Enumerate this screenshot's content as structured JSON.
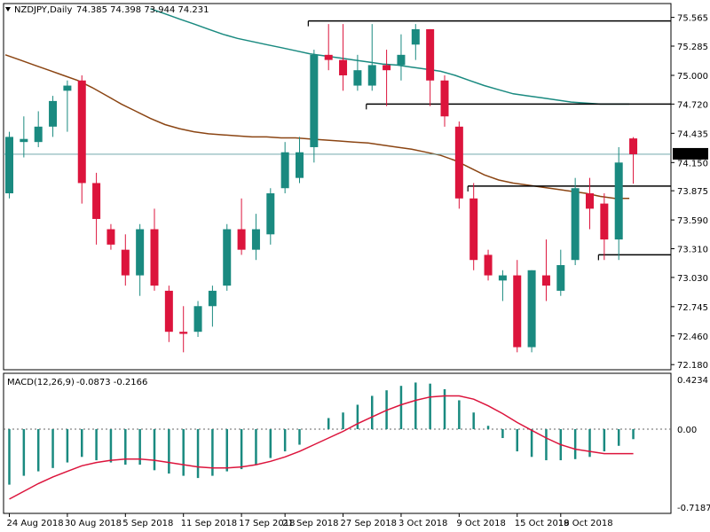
{
  "header": {
    "symbol": "NZDJPY,Daily",
    "ohlc": "74.385 74.398 73.944 74.231"
  },
  "macd": {
    "label": "MACD(12,26,9)",
    "values": "-0.0873 -0.2166"
  },
  "price_axis": {
    "ticks": [
      "75.565",
      "75.285",
      "75.000",
      "74.720",
      "74.435",
      "74.150",
      "73.875",
      "73.590",
      "73.310",
      "73.030",
      "72.745",
      "72.460",
      "72.180"
    ],
    "current_price": "74.231"
  },
  "macd_axis": {
    "ticks": [
      "0.4234",
      "0.00",
      "-0.7187"
    ]
  },
  "date_axis": {
    "labels": [
      "24 Aug 2018",
      "30 Aug 2018",
      "5 Sep 2018",
      "11 Sep 2018",
      "17 Sep 2018",
      "21 Sep 2018",
      "27 Sep 2018",
      "3 Oct 2018",
      "9 Oct 2018",
      "15 Oct 2018",
      "19 Oct 2018"
    ]
  },
  "colors": {
    "bull": "#1a8a80",
    "bear": "#dc143c",
    "ma_fast": "#8b4513",
    "ma_slow": "#1a8a80",
    "signal": "#dc143c",
    "levels": "#000000"
  },
  "chart_data": {
    "type": "candlestick",
    "price_range": [
      72.13,
      75.7
    ],
    "candles": [
      {
        "o": 73.85,
        "h": 74.45,
        "l": 73.8,
        "c": 74.4
      },
      {
        "o": 74.35,
        "h": 74.6,
        "l": 74.2,
        "c": 74.38
      },
      {
        "o": 74.35,
        "h": 74.65,
        "l": 74.3,
        "c": 74.5
      },
      {
        "o": 74.5,
        "h": 74.8,
        "l": 74.4,
        "c": 74.75
      },
      {
        "o": 74.85,
        "h": 74.95,
        "l": 74.45,
        "c": 74.9
      },
      {
        "o": 74.95,
        "h": 75.0,
        "l": 73.75,
        "c": 73.95
      },
      {
        "o": 73.95,
        "h": 74.05,
        "l": 73.35,
        "c": 73.6
      },
      {
        "o": 73.5,
        "h": 73.55,
        "l": 73.3,
        "c": 73.35
      },
      {
        "o": 73.3,
        "h": 73.45,
        "l": 72.95,
        "c": 73.05
      },
      {
        "o": 73.05,
        "h": 73.55,
        "l": 72.85,
        "c": 73.5
      },
      {
        "o": 73.5,
        "h": 73.7,
        "l": 72.9,
        "c": 72.95
      },
      {
        "o": 72.9,
        "h": 72.95,
        "l": 72.4,
        "c": 72.5
      },
      {
        "o": 72.5,
        "h": 72.75,
        "l": 72.3,
        "c": 72.48
      },
      {
        "o": 72.5,
        "h": 72.8,
        "l": 72.45,
        "c": 72.75
      },
      {
        "o": 72.75,
        "h": 72.95,
        "l": 72.55,
        "c": 72.9
      },
      {
        "o": 72.95,
        "h": 73.55,
        "l": 72.9,
        "c": 73.5
      },
      {
        "o": 73.5,
        "h": 73.8,
        "l": 73.25,
        "c": 73.3
      },
      {
        "o": 73.3,
        "h": 73.65,
        "l": 73.2,
        "c": 73.5
      },
      {
        "o": 73.45,
        "h": 73.9,
        "l": 73.35,
        "c": 73.85
      },
      {
        "o": 73.9,
        "h": 74.35,
        "l": 73.85,
        "c": 74.25
      },
      {
        "o": 74.0,
        "h": 74.4,
        "l": 73.95,
        "c": 74.25
      },
      {
        "o": 74.3,
        "h": 75.25,
        "l": 74.15,
        "c": 75.2
      },
      {
        "o": 75.2,
        "h": 75.5,
        "l": 75.05,
        "c": 75.15
      },
      {
        "o": 75.15,
        "h": 75.5,
        "l": 74.85,
        "c": 75.0
      },
      {
        "o": 74.9,
        "h": 75.2,
        "l": 74.85,
        "c": 75.05
      },
      {
        "o": 74.9,
        "h": 75.5,
        "l": 74.85,
        "c": 75.1
      },
      {
        "o": 75.1,
        "h": 75.25,
        "l": 74.7,
        "c": 75.05
      },
      {
        "o": 75.1,
        "h": 75.4,
        "l": 74.95,
        "c": 75.2
      },
      {
        "o": 75.3,
        "h": 75.5,
        "l": 75.15,
        "c": 75.45
      },
      {
        "o": 75.45,
        "h": 75.45,
        "l": 74.7,
        "c": 74.95
      },
      {
        "o": 74.95,
        "h": 75.0,
        "l": 74.5,
        "c": 74.6
      },
      {
        "o": 74.5,
        "h": 74.55,
        "l": 73.7,
        "c": 73.8
      },
      {
        "o": 73.8,
        "h": 73.95,
        "l": 73.1,
        "c": 73.2
      },
      {
        "o": 73.25,
        "h": 73.3,
        "l": 73.0,
        "c": 73.05
      },
      {
        "o": 73.0,
        "h": 73.1,
        "l": 72.8,
        "c": 73.05
      },
      {
        "o": 73.05,
        "h": 73.2,
        "l": 72.3,
        "c": 72.35
      },
      {
        "o": 72.35,
        "h": 73.1,
        "l": 72.3,
        "c": 73.1
      },
      {
        "o": 73.05,
        "h": 73.4,
        "l": 72.8,
        "c": 72.95
      },
      {
        "o": 72.9,
        "h": 73.3,
        "l": 72.85,
        "c": 73.15
      },
      {
        "o": 73.2,
        "h": 74.0,
        "l": 73.15,
        "c": 73.9
      },
      {
        "o": 73.85,
        "h": 74.0,
        "l": 73.5,
        "c": 73.7
      },
      {
        "o": 73.75,
        "h": 73.85,
        "l": 73.2,
        "c": 73.4
      },
      {
        "o": 73.4,
        "h": 74.3,
        "l": 73.2,
        "c": 74.15
      },
      {
        "o": 74.385,
        "h": 74.398,
        "l": 73.944,
        "c": 74.231
      }
    ],
    "ma_fast": [
      75.2,
      75.15,
      75.1,
      75.05,
      75.0,
      74.95,
      74.88,
      74.8,
      74.72,
      74.65,
      74.58,
      74.52,
      74.48,
      74.45,
      74.43,
      74.42,
      74.41,
      74.4,
      74.4,
      74.39,
      74.39,
      74.38,
      74.37,
      74.36,
      74.35,
      74.34,
      74.32,
      74.3,
      74.28,
      74.25,
      74.22,
      74.17,
      74.1,
      74.03,
      73.98,
      73.95,
      73.93,
      73.91,
      73.89,
      73.87,
      73.85,
      73.82,
      73.8,
      73.8
    ],
    "ma_slow_start_index": 10,
    "ma_slow": [
      75.65,
      75.6,
      75.55,
      75.5,
      75.45,
      75.4,
      75.36,
      75.33,
      75.3,
      75.27,
      75.24,
      75.21,
      75.19,
      75.17,
      75.15,
      75.13,
      75.11,
      75.1,
      75.08,
      75.06,
      75.04,
      75.0,
      74.95,
      74.9,
      74.86,
      74.82,
      74.8,
      74.78,
      74.76,
      74.74,
      74.73,
      74.72,
      74.72,
      74.72
    ],
    "levels": [
      {
        "price": 75.53,
        "from_index": 21,
        "to_index": 43
      },
      {
        "price": 74.72,
        "from_index": 25,
        "to_index": 43
      },
      {
        "price": 73.92,
        "from_index": 32,
        "to_index": 43
      },
      {
        "price": 73.25,
        "from_index": 41,
        "to_index": 43
      }
    ],
    "current_price": 74.231,
    "macd_range": [
      -0.7187,
      0.4234
    ],
    "macd_hist": [
      -0.5,
      -0.42,
      -0.38,
      -0.35,
      -0.3,
      -0.25,
      -0.28,
      -0.3,
      -0.32,
      -0.32,
      -0.37,
      -0.4,
      -0.42,
      -0.44,
      -0.42,
      -0.38,
      -0.36,
      -0.32,
      -0.26,
      -0.2,
      -0.14,
      0.0,
      0.1,
      0.15,
      0.22,
      0.3,
      0.35,
      0.39,
      0.42,
      0.41,
      0.36,
      0.26,
      0.15,
      0.03,
      -0.08,
      -0.2,
      -0.25,
      -0.28,
      -0.28,
      -0.27,
      -0.25,
      -0.2,
      -0.15,
      -0.09
    ],
    "macd_signal": [
      -0.63,
      -0.56,
      -0.49,
      -0.43,
      -0.38,
      -0.33,
      -0.3,
      -0.28,
      -0.27,
      -0.27,
      -0.28,
      -0.3,
      -0.32,
      -0.34,
      -0.35,
      -0.35,
      -0.34,
      -0.32,
      -0.29,
      -0.25,
      -0.2,
      -0.14,
      -0.08,
      -0.02,
      0.05,
      0.11,
      0.17,
      0.22,
      0.26,
      0.29,
      0.3,
      0.3,
      0.27,
      0.21,
      0.14,
      0.06,
      -0.01,
      -0.08,
      -0.14,
      -0.18,
      -0.2,
      -0.22,
      -0.22,
      -0.22
    ],
    "date_label_indices": [
      0,
      4,
      8,
      12,
      16,
      19,
      23,
      27,
      31,
      35,
      38
    ]
  }
}
